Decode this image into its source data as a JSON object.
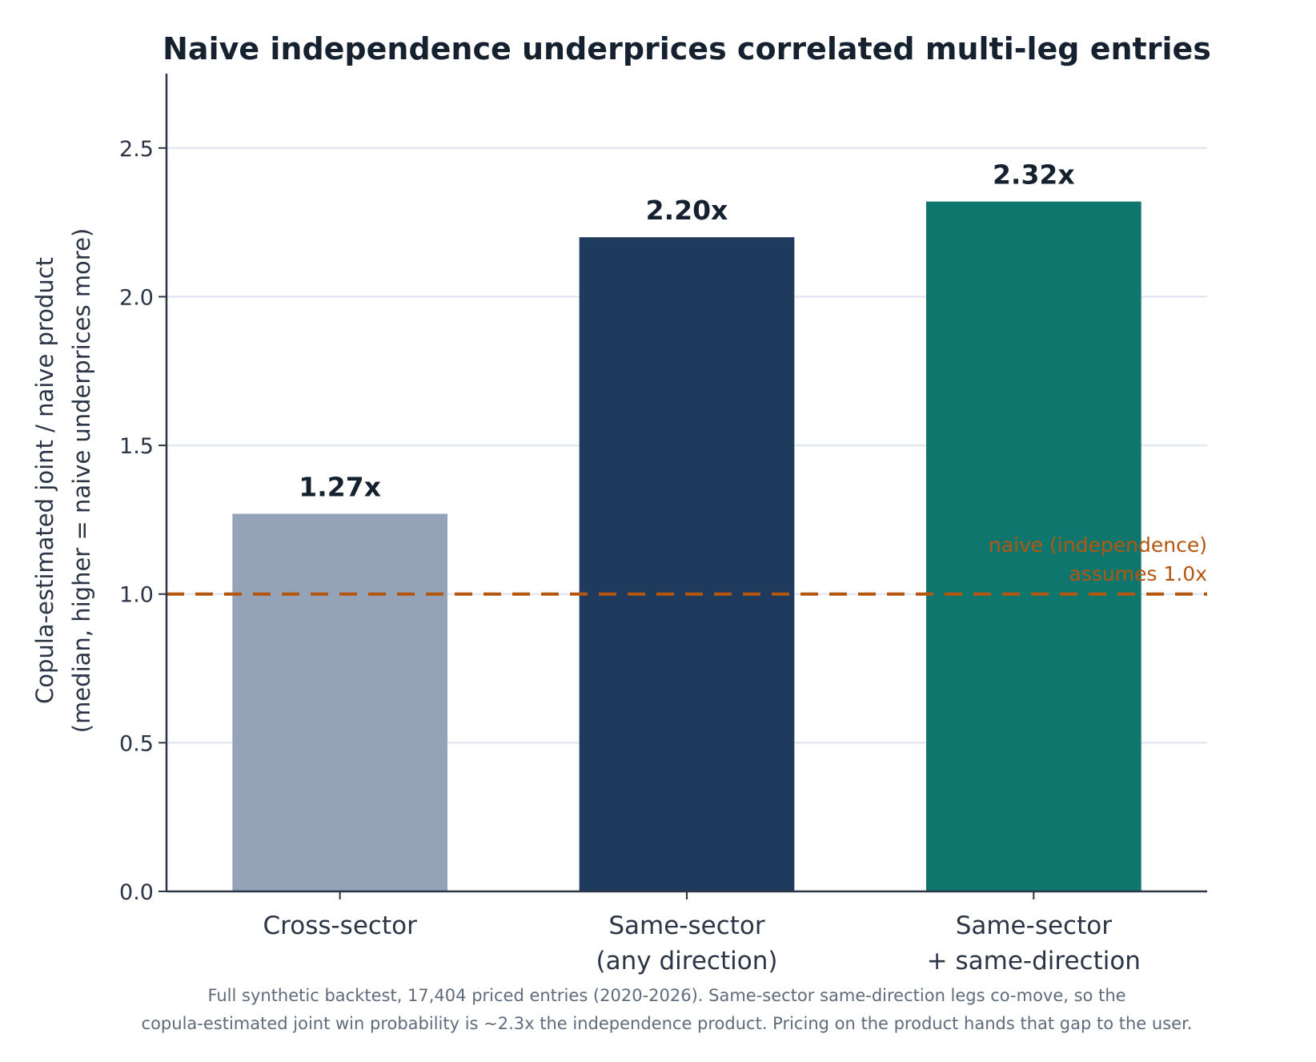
{
  "chart_data": {
    "type": "bar",
    "title": "Naive independence underprices correlated multi-leg entries",
    "ylabel_lines": [
      "Copula-estimated joint  /  naive product",
      "(median, higher = naive underprices more)"
    ],
    "xlabel": "",
    "ylim": [
      0,
      2.75
    ],
    "yticks": [
      "0.0",
      "0.5",
      "1.0",
      "1.5",
      "2.0",
      "2.5"
    ],
    "categories": [
      [
        "Cross-sector"
      ],
      [
        "Same-sector",
        "(any direction)"
      ],
      [
        "Same-sector",
        "+ same-direction"
      ]
    ],
    "values": [
      1.27,
      2.2,
      2.32
    ],
    "data_labels": [
      "1.27x",
      "2.20x",
      "2.32x"
    ],
    "colors": [
      "#94a3b8",
      "#1e3a5c",
      "#0f766e"
    ],
    "grid": true,
    "reference_line": {
      "value": 1.0,
      "style": "dashed",
      "color": "#b5560f",
      "label_lines": [
        "naive (independence)",
        "assumes 1.0x"
      ]
    },
    "footnote_lines": [
      "Full synthetic backtest, 17,404 priced entries (2020-2026). Same-sector same-direction legs co-move, so the",
      "copula-estimated joint win probability is ~2.3x the independence product. Pricing on the product hands that gap to the user."
    ]
  }
}
